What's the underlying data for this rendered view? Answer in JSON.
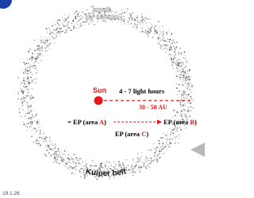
{
  "top_label": [
    "small",
    "icy objects"
  ],
  "sun": "Sun",
  "distance_time": "4 - 7 light hours",
  "distance_au": "30 - 50 AU",
  "equation": {
    "prefix": "= EP (area ",
    "left_letter": "A",
    "left_close": ")",
    "right_open": "EP (area ",
    "right_letter": "B",
    "right_close": ")"
  },
  "area_c": {
    "open": "EP (area ",
    "letter": "C",
    "close": ")"
  },
  "belt_label": "Kuiper belt",
  "date": "19.1.26"
}
